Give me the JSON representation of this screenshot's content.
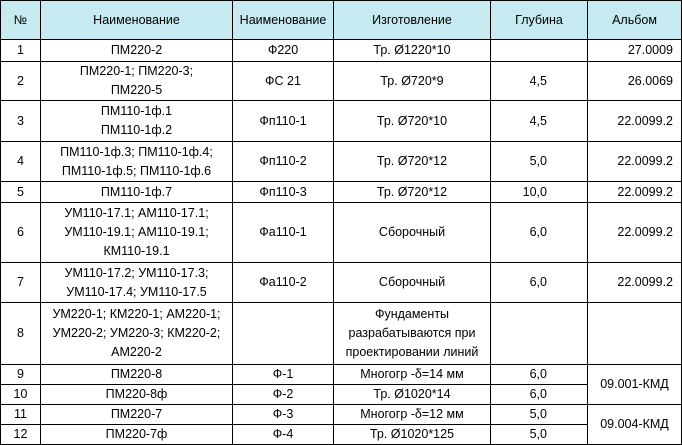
{
  "table": {
    "header": [
      "№",
      "Наименование",
      "Наименование",
      "Изготовление",
      "Глубина",
      "Альбом"
    ],
    "rows": [
      {
        "num": "1",
        "name": [
          "ПМ220-2"
        ],
        "name2": "Ф220",
        "make": [
          "Тр. Ø1220*10"
        ],
        "depth": null,
        "album": "27.0009"
      },
      {
        "num": "2",
        "name": [
          "ПМ220-1; ПМ220-3;",
          "ПМ220-5"
        ],
        "name2": "ФС 21",
        "make": [
          "Тр. Ø720*9"
        ],
        "depth": "4,5",
        "album": "26.0069"
      },
      {
        "num": "3",
        "name": [
          "ПМ110-1ф.1",
          "ПМ110-1ф.2"
        ],
        "name2": "Фп110-1",
        "make": [
          "Тр. Ø720*10"
        ],
        "depth": "4,5",
        "album": "22.0099.2"
      },
      {
        "num": "4",
        "name": [
          "ПМ110-1ф.3; ПМ110-1ф.4;",
          "ПМ110-1ф.5; ПМ110-1ф.6"
        ],
        "name2": "Фп110-2",
        "make": [
          "Тр. Ø720*12"
        ],
        "depth": "5,0",
        "album": "22.0099.2"
      },
      {
        "num": "5",
        "name": [
          "ПМ110-1ф.7"
        ],
        "name2": "Фп110-3",
        "make": [
          "Тр. Ø720*12"
        ],
        "depth": "10,0",
        "album": "22.0099.2"
      },
      {
        "num": "6",
        "name": [
          "УМ110-17.1; АМ110-17.1;",
          "УМ110-19.1; АМ110-19.1;",
          "КМ110-19.1"
        ],
        "name2": "Фа110-1",
        "make": [
          "Сборочный"
        ],
        "depth": "6,0",
        "album": "22.0099.2"
      },
      {
        "num": "7",
        "name": [
          "УМ110-17.2; УМ110-17.3;",
          "УМ110-17.4; УМ110-17.5"
        ],
        "name2": "Фа110-2",
        "make": [
          "Сборочный"
        ],
        "depth": "6,0",
        "album": "22.0099.2"
      },
      {
        "num": "8",
        "name": [
          "УМ220-1; КМ220-1; АМ220-1;",
          "УМ220-2; УМ220-3; КМ220-2;",
          "АМ220-2"
        ],
        "name2": null,
        "make": [
          "Фундаменты",
          "разрабатываются при",
          "проектировании линий"
        ],
        "depth": null,
        "album": null
      },
      {
        "num": "9",
        "name": [
          "ПМ220-8"
        ],
        "name2": "Ф-1",
        "make": [
          "Многогр -δ=14 мм"
        ],
        "depth": "6,0",
        "album": "09.001-КМД"
      },
      {
        "num": "10",
        "name": [
          "ПМ220-8ф"
        ],
        "name2": "Ф-2",
        "make": [
          "Тр. Ø1020*14"
        ],
        "depth": "6,0"
      },
      {
        "num": "11",
        "name": [
          "ПМ220-7"
        ],
        "name2": "Ф-3",
        "make": [
          "Многогр -δ=12 мм"
        ],
        "depth": "5,0",
        "album": "09.004-КМД"
      },
      {
        "num": "12",
        "name": [
          "ПМ220-7ф"
        ],
        "name2": "Ф-4",
        "make": [
          "Тр. Ø1020*125"
        ],
        "depth": "5,0"
      }
    ]
  }
}
